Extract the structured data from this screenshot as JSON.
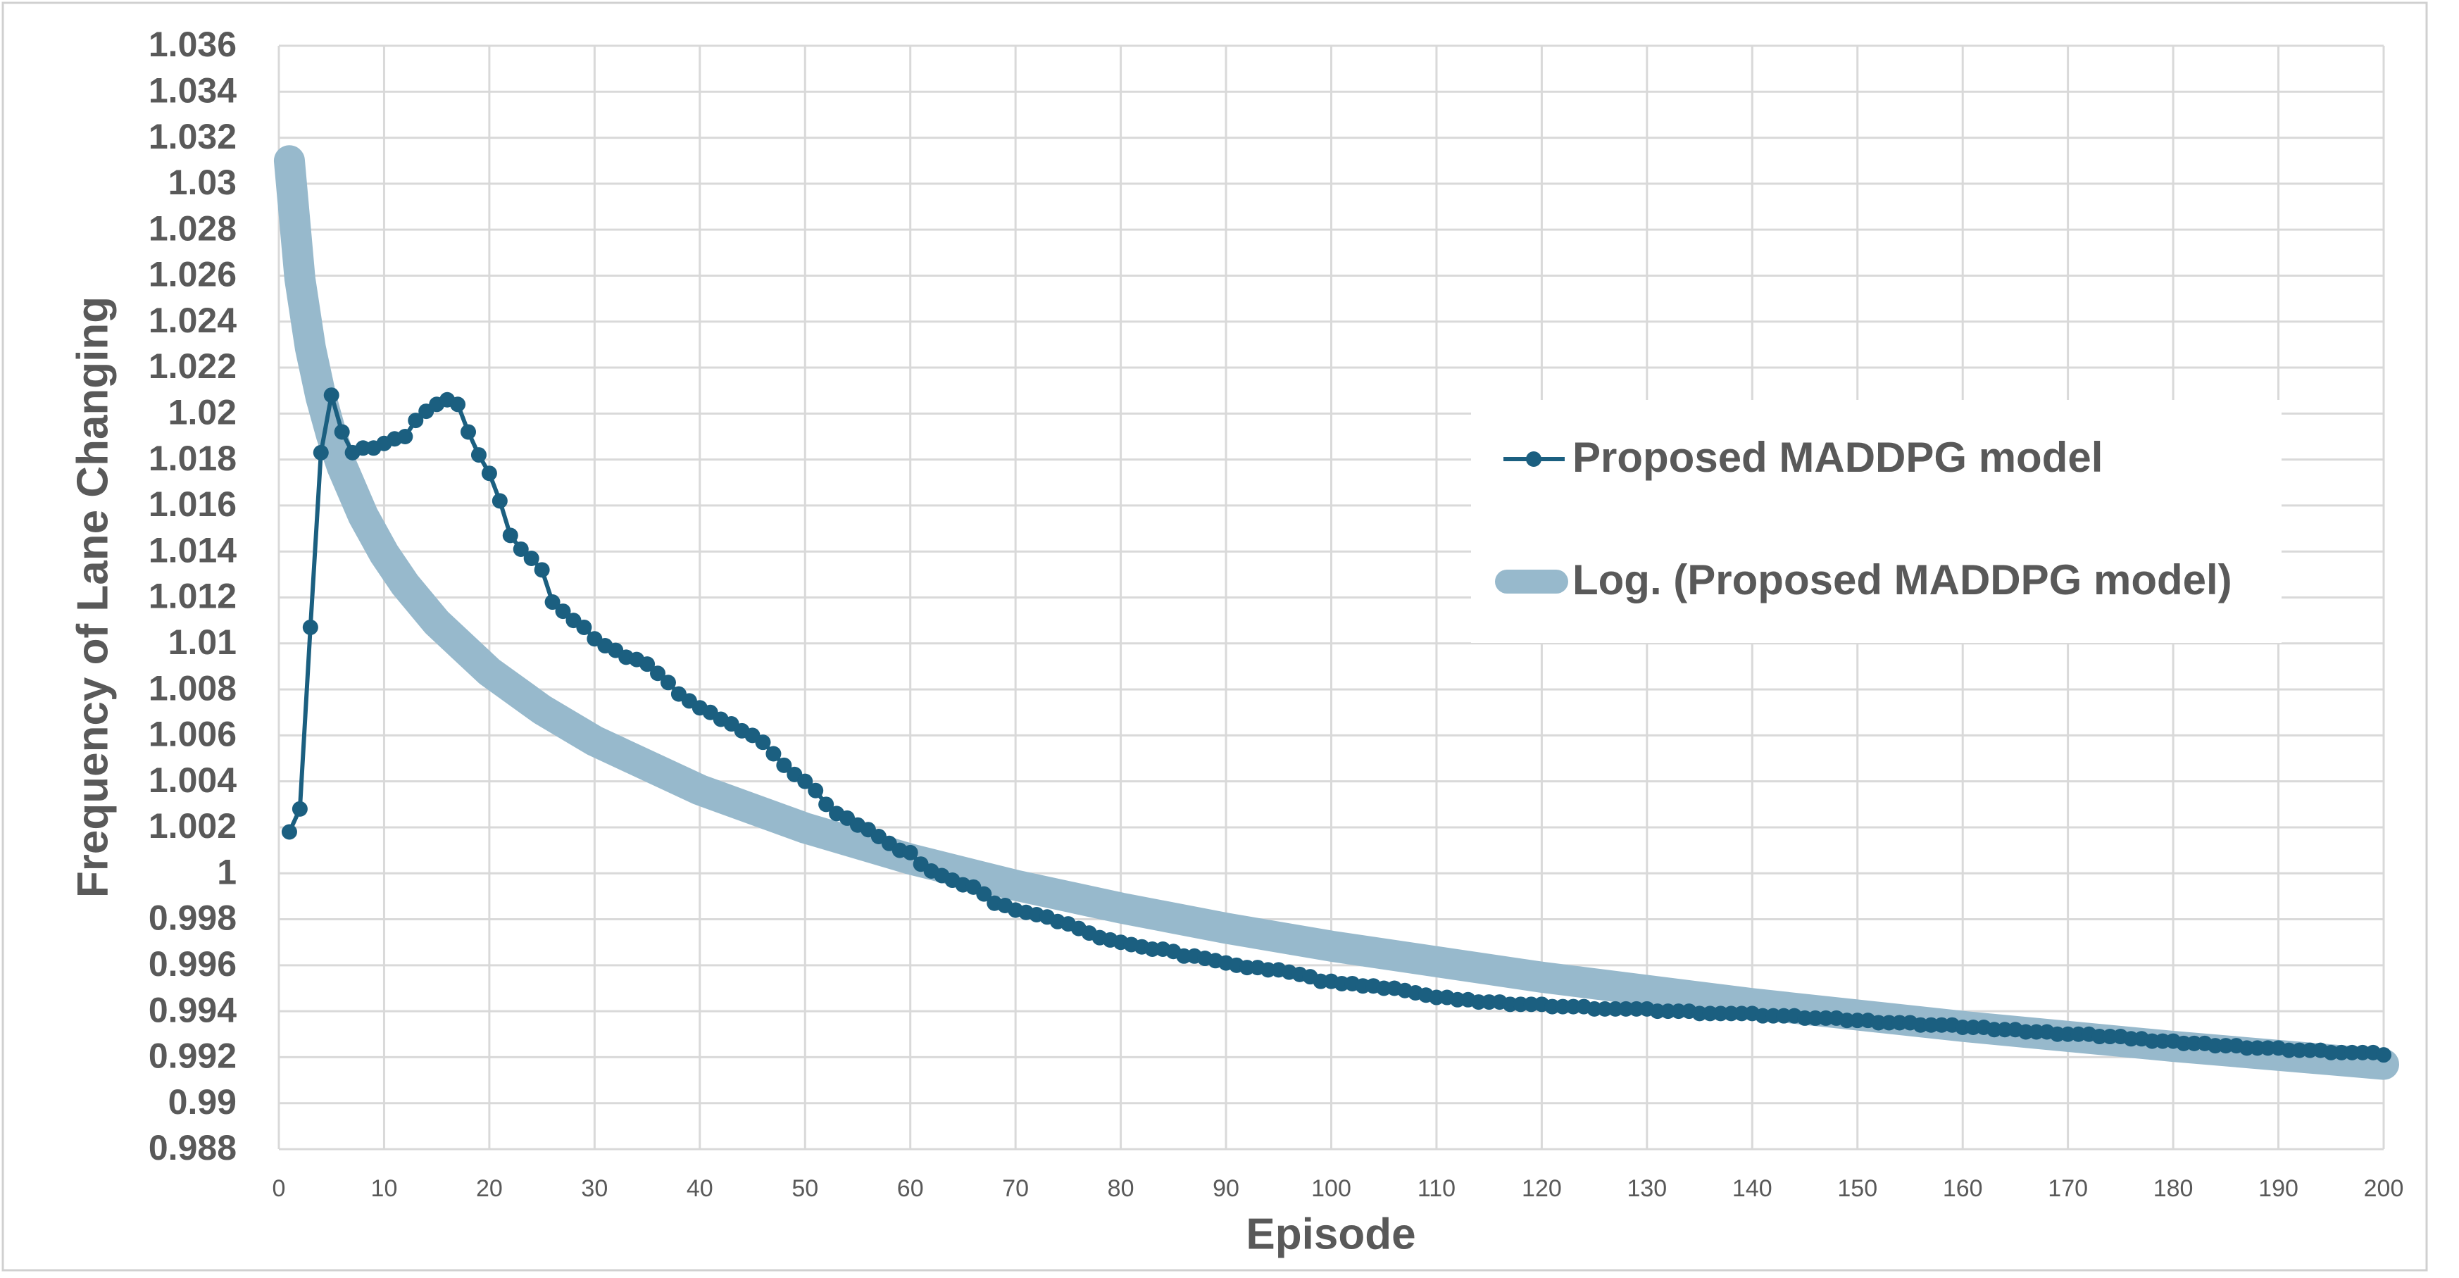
{
  "chart_data": {
    "type": "line",
    "x_label": "Episode",
    "y_label": "Frequency of Lane Changing",
    "xlim": [
      0,
      200
    ],
    "xticks": [
      0,
      10,
      20,
      30,
      40,
      50,
      60,
      70,
      80,
      90,
      100,
      110,
      120,
      130,
      140,
      150,
      160,
      170,
      180,
      190,
      200
    ],
    "ylim": [
      0.988,
      1.036
    ],
    "yticks": [
      0.988,
      0.99,
      0.992,
      0.994,
      0.996,
      0.998,
      1,
      1.002,
      1.004,
      1.006,
      1.008,
      1.01,
      1.012,
      1.014,
      1.016,
      1.018,
      1.02,
      1.022,
      1.024,
      1.026,
      1.028,
      1.03,
      1.032,
      1.034,
      1.036
    ],
    "grid": true,
    "series": [
      {
        "name": "Log. (Proposed MADDPG model)",
        "color": "#97b9cc",
        "markers": false,
        "x": [
          1,
          2,
          3,
          4,
          5,
          6,
          8,
          10,
          12,
          15,
          20,
          25,
          30,
          40,
          50,
          60,
          70,
          80,
          90,
          100,
          120,
          140,
          160,
          180,
          200
        ],
        "values": [
          1.031,
          1.02586,
          1.02285,
          1.02071,
          1.01906,
          1.0177,
          1.01557,
          1.01391,
          1.01256,
          1.01091,
          1.00877,
          1.00712,
          1.00576,
          1.00363,
          1.00197,
          1.00062,
          0.99948,
          0.99849,
          0.99761,
          0.99683,
          0.99548,
          0.99433,
          0.99334,
          0.99247,
          0.99169
        ]
      },
      {
        "name": "Proposed MADDPG model",
        "color": "#1b5f80",
        "markers": true,
        "x": [
          1,
          2,
          3,
          4,
          5,
          6,
          7,
          8,
          9,
          10,
          11,
          12,
          13,
          14,
          15,
          16,
          17,
          18,
          19,
          20,
          21,
          22,
          23,
          24,
          25,
          26,
          27,
          28,
          29,
          30,
          31,
          32,
          33,
          34,
          35,
          36,
          37,
          38,
          39,
          40,
          41,
          42,
          43,
          44,
          45,
          46,
          47,
          48,
          49,
          50,
          51,
          52,
          53,
          54,
          55,
          56,
          57,
          58,
          59,
          60,
          61,
          62,
          63,
          64,
          65,
          66,
          67,
          68,
          69,
          70,
          71,
          72,
          73,
          74,
          75,
          76,
          77,
          78,
          79,
          80,
          81,
          82,
          83,
          84,
          85,
          86,
          87,
          88,
          89,
          90,
          91,
          92,
          93,
          94,
          95,
          96,
          97,
          98,
          99,
          100,
          101,
          102,
          103,
          104,
          105,
          106,
          107,
          108,
          109,
          110,
          111,
          112,
          113,
          114,
          115,
          116,
          117,
          118,
          119,
          120,
          121,
          122,
          123,
          124,
          125,
          126,
          127,
          128,
          129,
          130,
          131,
          132,
          133,
          134,
          135,
          136,
          137,
          138,
          139,
          140,
          141,
          142,
          143,
          144,
          145,
          146,
          147,
          148,
          149,
          150,
          151,
          152,
          153,
          154,
          155,
          156,
          157,
          158,
          159,
          160,
          161,
          162,
          163,
          164,
          165,
          166,
          167,
          168,
          169,
          170,
          171,
          172,
          173,
          174,
          175,
          176,
          177,
          178,
          179,
          180,
          181,
          182,
          183,
          184,
          185,
          186,
          187,
          188,
          189,
          190,
          191,
          192,
          193,
          194,
          195,
          196,
          197,
          198,
          199,
          200
        ],
        "values": [
          1.0018,
          1.0028,
          1.0107,
          1.0183,
          1.0208,
          1.0192,
          1.0183,
          1.0185,
          1.0185,
          1.0187,
          1.0189,
          1.019,
          1.0197,
          1.0201,
          1.0204,
          1.0206,
          1.0204,
          1.0192,
          1.0182,
          1.0174,
          1.0162,
          1.0147,
          1.0141,
          1.0137,
          1.0132,
          1.0118,
          1.0114,
          1.011,
          1.0107,
          1.0102,
          1.0099,
          1.0097,
          1.0094,
          1.0093,
          1.0091,
          1.0087,
          1.0083,
          1.0078,
          1.0075,
          1.0072,
          1.007,
          1.0067,
          1.0065,
          1.0062,
          1.006,
          1.0057,
          1.0052,
          1.0047,
          1.0043,
          1.004,
          1.0036,
          1.003,
          1.0026,
          1.0024,
          1.0021,
          1.0019,
          1.0016,
          1.0013,
          1.001,
          1.0009,
          1.0004,
          1.0001,
          0.9999,
          0.9997,
          0.9995,
          0.9994,
          0.9991,
          0.9987,
          0.9986,
          0.9984,
          0.9983,
          0.9982,
          0.9981,
          0.9979,
          0.9978,
          0.9976,
          0.9974,
          0.9972,
          0.9971,
          0.997,
          0.9969,
          0.9968,
          0.9967,
          0.9967,
          0.9966,
          0.9964,
          0.9964,
          0.9963,
          0.9962,
          0.9961,
          0.996,
          0.9959,
          0.9959,
          0.9958,
          0.9958,
          0.9957,
          0.9956,
          0.9955,
          0.9953,
          0.9953,
          0.9952,
          0.9952,
          0.9951,
          0.9951,
          0.995,
          0.995,
          0.9949,
          0.9948,
          0.9947,
          0.9946,
          0.9946,
          0.9945,
          0.9945,
          0.9944,
          0.9944,
          0.9944,
          0.9943,
          0.9943,
          0.9943,
          0.9943,
          0.9942,
          0.9942,
          0.9942,
          0.9942,
          0.9941,
          0.9941,
          0.9941,
          0.9941,
          0.9941,
          0.9941,
          0.994,
          0.994,
          0.994,
          0.994,
          0.9939,
          0.9939,
          0.9939,
          0.9939,
          0.9939,
          0.9939,
          0.9938,
          0.9938,
          0.9938,
          0.9938,
          0.9937,
          0.9937,
          0.9937,
          0.9937,
          0.9936,
          0.9936,
          0.9936,
          0.9935,
          0.9935,
          0.9935,
          0.9935,
          0.9934,
          0.9934,
          0.9934,
          0.9934,
          0.9933,
          0.9933,
          0.9933,
          0.9932,
          0.9932,
          0.9932,
          0.9931,
          0.9931,
          0.9931,
          0.993,
          0.993,
          0.993,
          0.993,
          0.9929,
          0.9929,
          0.9929,
          0.9928,
          0.9928,
          0.9927,
          0.9927,
          0.9927,
          0.9926,
          0.9926,
          0.9926,
          0.9925,
          0.9925,
          0.9925,
          0.9924,
          0.9924,
          0.9924,
          0.9924,
          0.9923,
          0.9923,
          0.9923,
          0.9923,
          0.9922,
          0.9922,
          0.9922,
          0.9922,
          0.9922,
          0.9921
        ]
      }
    ]
  }
}
